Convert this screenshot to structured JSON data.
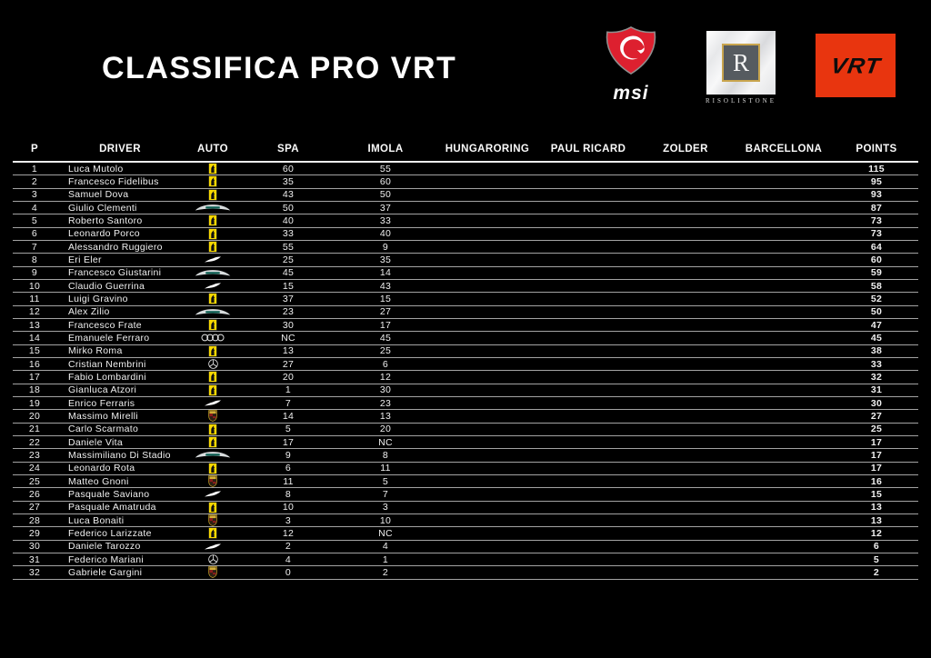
{
  "title": "CLASSIFICA PRO VRT",
  "logos": {
    "msi": {
      "label": "msi"
    },
    "risolistone": {
      "initial": "R",
      "caption": "RISOLISTONE"
    },
    "vrt": {
      "label": "VRT"
    }
  },
  "colors": {
    "background": "#000000",
    "text": "#f2f2f2",
    "row_line": "#a3a3a3",
    "vrt_red": "#e8350f",
    "msi_red": "#dd202f",
    "risolistone_gold": "#c9a54e",
    "ferrari_yellow": "#f8d800",
    "aston_teal": "#0c5f52"
  },
  "table": {
    "headers": [
      "P",
      "DRIVER",
      "AUTO",
      "SPA",
      "IMOLA",
      "HUNGARORING",
      "PAUL RICARD",
      "ZOLDER",
      "BARCELLONA",
      "POINTS"
    ],
    "rows": [
      {
        "p": "1",
        "driver": "Luca Mutolo",
        "auto": "ferrari",
        "spa": "60",
        "imola": "55",
        "hungaroring": "",
        "paul_ricard": "",
        "zolder": "",
        "barcellona": "",
        "points": "115"
      },
      {
        "p": "2",
        "driver": "Francesco Fidelibus",
        "auto": "ferrari",
        "spa": "35",
        "imola": "60",
        "hungaroring": "",
        "paul_ricard": "",
        "zolder": "",
        "barcellona": "",
        "points": "95"
      },
      {
        "p": "3",
        "driver": "Samuel Dova",
        "auto": "ferrari",
        "spa": "43",
        "imola": "50",
        "hungaroring": "",
        "paul_ricard": "",
        "zolder": "",
        "barcellona": "",
        "points": "93"
      },
      {
        "p": "4",
        "driver": "Giulio Clementi",
        "auto": "astonmartin",
        "spa": "50",
        "imola": "37",
        "hungaroring": "",
        "paul_ricard": "",
        "zolder": "",
        "barcellona": "",
        "points": "87"
      },
      {
        "p": "5",
        "driver": "Roberto Santoro",
        "auto": "ferrari",
        "spa": "40",
        "imola": "33",
        "hungaroring": "",
        "paul_ricard": "",
        "zolder": "",
        "barcellona": "",
        "points": "73"
      },
      {
        "p": "6",
        "driver": "Leonardo Porco",
        "auto": "ferrari",
        "spa": "33",
        "imola": "40",
        "hungaroring": "",
        "paul_ricard": "",
        "zolder": "",
        "barcellona": "",
        "points": "73"
      },
      {
        "p": "7",
        "driver": "Alessandro Ruggiero",
        "auto": "ferrari",
        "spa": "55",
        "imola": "9",
        "hungaroring": "",
        "paul_ricard": "",
        "zolder": "",
        "barcellona": "",
        "points": "64"
      },
      {
        "p": "8",
        "driver": "Eri Eler",
        "auto": "mclaren",
        "spa": "25",
        "imola": "35",
        "hungaroring": "",
        "paul_ricard": "",
        "zolder": "",
        "barcellona": "",
        "points": "60"
      },
      {
        "p": "9",
        "driver": "Francesco Giustarini",
        "auto": "astonmartin",
        "spa": "45",
        "imola": "14",
        "hungaroring": "",
        "paul_ricard": "",
        "zolder": "",
        "barcellona": "",
        "points": "59"
      },
      {
        "p": "10",
        "driver": "Claudio Guerrina",
        "auto": "mclaren",
        "spa": "15",
        "imola": "43",
        "hungaroring": "",
        "paul_ricard": "",
        "zolder": "",
        "barcellona": "",
        "points": "58"
      },
      {
        "p": "11",
        "driver": "Luigi Gravino",
        "auto": "ferrari",
        "spa": "37",
        "imola": "15",
        "hungaroring": "",
        "paul_ricard": "",
        "zolder": "",
        "barcellona": "",
        "points": "52"
      },
      {
        "p": "12",
        "driver": "Alex Zilio",
        "auto": "astonmartin",
        "spa": "23",
        "imola": "27",
        "hungaroring": "",
        "paul_ricard": "",
        "zolder": "",
        "barcellona": "",
        "points": "50"
      },
      {
        "p": "13",
        "driver": "Francesco Frate",
        "auto": "ferrari",
        "spa": "30",
        "imola": "17",
        "hungaroring": "",
        "paul_ricard": "",
        "zolder": "",
        "barcellona": "",
        "points": "47"
      },
      {
        "p": "14",
        "driver": "Emanuele Ferraro",
        "auto": "audi",
        "spa": "NC",
        "imola": "45",
        "hungaroring": "",
        "paul_ricard": "",
        "zolder": "",
        "barcellona": "",
        "points": "45"
      },
      {
        "p": "15",
        "driver": "Mirko Roma",
        "auto": "ferrari",
        "spa": "13",
        "imola": "25",
        "hungaroring": "",
        "paul_ricard": "",
        "zolder": "",
        "barcellona": "",
        "points": "38"
      },
      {
        "p": "16",
        "driver": "Cristian Nembrini",
        "auto": "mercedes",
        "spa": "27",
        "imola": "6",
        "hungaroring": "",
        "paul_ricard": "",
        "zolder": "",
        "barcellona": "",
        "points": "33"
      },
      {
        "p": "17",
        "driver": "Fabio Lombardini",
        "auto": "ferrari",
        "spa": "20",
        "imola": "12",
        "hungaroring": "",
        "paul_ricard": "",
        "zolder": "",
        "barcellona": "",
        "points": "32"
      },
      {
        "p": "18",
        "driver": "Gianluca Atzori",
        "auto": "ferrari",
        "spa": "1",
        "imola": "30",
        "hungaroring": "",
        "paul_ricard": "",
        "zolder": "",
        "barcellona": "",
        "points": "31"
      },
      {
        "p": "19",
        "driver": "Enrico Ferraris",
        "auto": "mclaren",
        "spa": "7",
        "imola": "23",
        "hungaroring": "",
        "paul_ricard": "",
        "zolder": "",
        "barcellona": "",
        "points": "30"
      },
      {
        "p": "20",
        "driver": "Massimo Mirelli",
        "auto": "porsche",
        "spa": "14",
        "imola": "13",
        "hungaroring": "",
        "paul_ricard": "",
        "zolder": "",
        "barcellona": "",
        "points": "27"
      },
      {
        "p": "21",
        "driver": "Carlo Scarmato",
        "auto": "ferrari",
        "spa": "5",
        "imola": "20",
        "hungaroring": "",
        "paul_ricard": "",
        "zolder": "",
        "barcellona": "",
        "points": "25"
      },
      {
        "p": "22",
        "driver": "Daniele Vita",
        "auto": "ferrari",
        "spa": "17",
        "imola": "NC",
        "hungaroring": "",
        "paul_ricard": "",
        "zolder": "",
        "barcellona": "",
        "points": "17"
      },
      {
        "p": "23",
        "driver": "Massimiliano Di Stadio",
        "auto": "astonmartin",
        "spa": "9",
        "imola": "8",
        "hungaroring": "",
        "paul_ricard": "",
        "zolder": "",
        "barcellona": "",
        "points": "17"
      },
      {
        "p": "24",
        "driver": "Leonardo Rota",
        "auto": "ferrari",
        "spa": "6",
        "imola": "11",
        "hungaroring": "",
        "paul_ricard": "",
        "zolder": "",
        "barcellona": "",
        "points": "17"
      },
      {
        "p": "25",
        "driver": "Matteo Gnoni",
        "auto": "porsche",
        "spa": "11",
        "imola": "5",
        "hungaroring": "",
        "paul_ricard": "",
        "zolder": "",
        "barcellona": "",
        "points": "16"
      },
      {
        "p": "26",
        "driver": "Pasquale Saviano",
        "auto": "mclaren",
        "spa": "8",
        "imola": "7",
        "hungaroring": "",
        "paul_ricard": "",
        "zolder": "",
        "barcellona": "",
        "points": "15"
      },
      {
        "p": "27",
        "driver": "Pasquale Amatruda",
        "auto": "ferrari",
        "spa": "10",
        "imola": "3",
        "hungaroring": "",
        "paul_ricard": "",
        "zolder": "",
        "barcellona": "",
        "points": "13"
      },
      {
        "p": "28",
        "driver": "Luca Bonaiti",
        "auto": "porsche",
        "spa": "3",
        "imola": "10",
        "hungaroring": "",
        "paul_ricard": "",
        "zolder": "",
        "barcellona": "",
        "points": "13"
      },
      {
        "p": "29",
        "driver": "Federico Larizzate",
        "auto": "ferrari",
        "spa": "12",
        "imola": "NC",
        "hungaroring": "",
        "paul_ricard": "",
        "zolder": "",
        "barcellona": "",
        "points": "12"
      },
      {
        "p": "30",
        "driver": "Daniele Tarozzo",
        "auto": "mclaren",
        "spa": "2",
        "imola": "4",
        "hungaroring": "",
        "paul_ricard": "",
        "zolder": "",
        "barcellona": "",
        "points": "6"
      },
      {
        "p": "31",
        "driver": "Federico Mariani",
        "auto": "mercedes",
        "spa": "4",
        "imola": "1",
        "hungaroring": "",
        "paul_ricard": "",
        "zolder": "",
        "barcellona": "",
        "points": "5"
      },
      {
        "p": "32",
        "driver": "Gabriele Gargini",
        "auto": "porsche",
        "spa": "0",
        "imola": "2",
        "hungaroring": "",
        "paul_ricard": "",
        "zolder": "",
        "barcellona": "",
        "points": "2"
      }
    ]
  }
}
